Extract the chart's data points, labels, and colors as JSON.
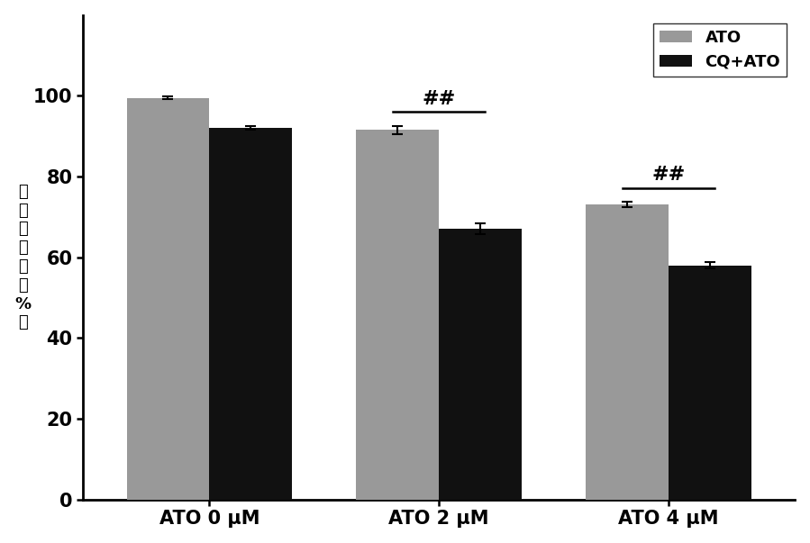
{
  "categories": [
    "ATO 0 μM",
    "ATO 2 μM",
    "ATO 4 μM"
  ],
  "ato_values": [
    99.5,
    91.5,
    73.0
  ],
  "cqato_values": [
    92.0,
    67.0,
    58.0
  ],
  "ato_errors": [
    0.3,
    1.0,
    0.7
  ],
  "cqato_errors": [
    0.5,
    1.3,
    0.7
  ],
  "ato_color": "#999999",
  "cqato_color": "#111111",
  "ylabel": "细胞存活率（%）",
  "ylim": [
    0,
    120
  ],
  "yticks": [
    0,
    20,
    40,
    60,
    80,
    100
  ],
  "legend_labels": [
    "ATO",
    "CQ+ATO"
  ],
  "significance_groups": [
    1,
    2
  ],
  "sig_label": "##",
  "bar_width": 0.36,
  "background_color": "#ffffff",
  "tick_fontsize": 15,
  "legend_fontsize": 13
}
